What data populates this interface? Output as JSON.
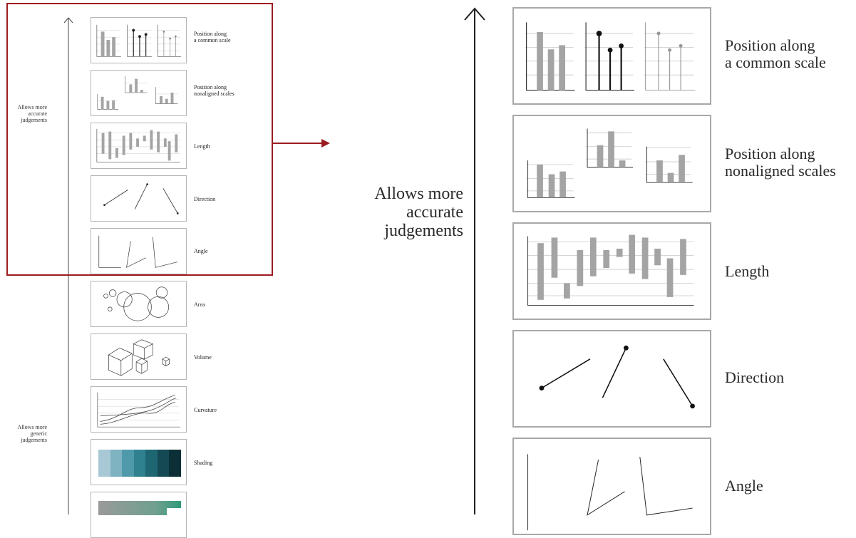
{
  "overview": {
    "axis_top_label": [
      "Allows more",
      "accurate",
      "judgements"
    ],
    "axis_bottom_label": [
      "Allows more",
      "generic",
      "judgements"
    ],
    "items": [
      {
        "label": "Position along\na common scale",
        "icon": "position-common-scale-icon"
      },
      {
        "label": "Position along\nnonaligned scales",
        "icon": "position-nonaligned-scales-icon"
      },
      {
        "label": "Length",
        "icon": "length-icon"
      },
      {
        "label": "Direction",
        "icon": "direction-icon"
      },
      {
        "label": "Angle",
        "icon": "angle-icon"
      },
      {
        "label": "Area",
        "icon": "area-icon"
      },
      {
        "label": "Volume",
        "icon": "volume-icon"
      },
      {
        "label": "Curvature",
        "icon": "curvature-icon"
      },
      {
        "label": "Shading",
        "icon": "shading-icon"
      },
      {
        "label": "",
        "icon": "saturation-icon"
      }
    ]
  },
  "detail": {
    "axis_label": [
      "Allows more",
      "accurate",
      "judgements"
    ],
    "items": [
      {
        "label": "Position along\na common scale"
      },
      {
        "label": "Position along\nnonaligned scales"
      },
      {
        "label": "Length"
      },
      {
        "label": "Direction"
      },
      {
        "label": "Angle"
      }
    ]
  },
  "colors": {
    "highlight": "#9b1c20",
    "bar_gray": "#a4a4a4",
    "shading": [
      "#a9c8d6",
      "#7fb3c2",
      "#4f9aaa",
      "#2f8190",
      "#1f6673",
      "#154a55",
      "#0c2f37"
    ]
  }
}
